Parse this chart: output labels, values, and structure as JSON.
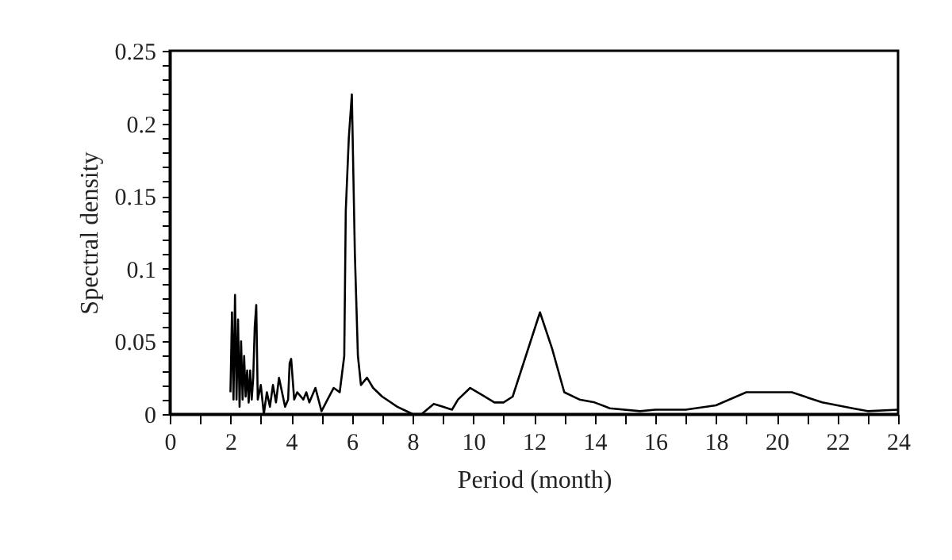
{
  "chart_data": {
    "type": "line",
    "xlabel": "Period (month)",
    "ylabel": "Spectral density",
    "x": [
      2.0,
      2.05,
      2.1,
      2.15,
      2.2,
      2.25,
      2.3,
      2.35,
      2.4,
      2.45,
      2.5,
      2.55,
      2.6,
      2.65,
      2.7,
      2.75,
      2.8,
      2.85,
      2.9,
      3.0,
      3.1,
      3.2,
      3.3,
      3.4,
      3.5,
      3.6,
      3.7,
      3.8,
      3.9,
      3.95,
      4.0,
      4.1,
      4.2,
      4.4,
      4.5,
      4.6,
      4.8,
      5.0,
      5.2,
      5.4,
      5.6,
      5.75,
      5.8,
      5.9,
      6.0,
      6.1,
      6.2,
      6.3,
      6.5,
      6.7,
      7.0,
      7.5,
      8.0,
      8.3,
      8.7,
      9.0,
      9.3,
      9.5,
      9.9,
      10.3,
      10.7,
      11.0,
      11.3,
      12.2,
      12.6,
      13.0,
      13.5,
      14.0,
      14.5,
      15.5,
      16.0,
      17.0,
      18.0,
      19.0,
      20.5,
      21.5,
      22.5,
      23.0,
      24.0
    ],
    "series": [
      {
        "color": "#000000",
        "values": [
          0.015,
          0.07,
          0.01,
          0.082,
          0.01,
          0.065,
          0.005,
          0.05,
          0.01,
          0.04,
          0.012,
          0.03,
          0.008,
          0.03,
          0.01,
          0.025,
          0.06,
          0.075,
          0.01,
          0.02,
          0.0,
          0.015,
          0.005,
          0.02,
          0.008,
          0.025,
          0.015,
          0.005,
          0.01,
          0.035,
          0.038,
          0.01,
          0.015,
          0.01,
          0.015,
          0.008,
          0.018,
          0.002,
          0.01,
          0.018,
          0.015,
          0.04,
          0.14,
          0.19,
          0.22,
          0.11,
          0.04,
          0.02,
          0.025,
          0.018,
          0.012,
          0.005,
          0.0,
          0.0,
          0.007,
          0.005,
          0.003,
          0.01,
          0.018,
          0.013,
          0.008,
          0.008,
          0.012,
          0.07,
          0.045,
          0.015,
          0.01,
          0.008,
          0.004,
          0.002,
          0.003,
          0.003,
          0.006,
          0.015,
          0.015,
          0.008,
          0.004,
          0.002,
          0.003
        ]
      }
    ],
    "xlim": [
      0,
      24
    ],
    "ylim": [
      0,
      0.25
    ],
    "xticks": [
      0,
      {
        "value": 1,
        "label": null
      },
      2,
      {
        "value": 3,
        "label": null
      },
      4,
      {
        "value": 5,
        "label": null
      },
      6,
      {
        "value": 7,
        "label": null
      },
      8,
      {
        "value": 9,
        "label": null
      },
      10,
      {
        "value": 11,
        "label": null
      },
      12,
      {
        "value": 13,
        "label": null
      },
      14,
      {
        "value": 15,
        "label": null
      },
      16,
      {
        "value": 17,
        "label": null
      },
      18,
      {
        "value": 19,
        "label": null
      },
      20,
      {
        "value": 21,
        "label": null
      },
      22,
      {
        "value": 23,
        "label": null
      },
      24
    ],
    "yticks": [
      0,
      {
        "value": 0.01,
        "label": null
      },
      {
        "value": 0.02,
        "label": null
      },
      {
        "value": 0.03,
        "label": null
      },
      {
        "value": 0.04,
        "label": null
      },
      0.05,
      {
        "value": 0.06,
        "label": null
      },
      {
        "value": 0.07,
        "label": null
      },
      {
        "value": 0.08,
        "label": null
      },
      {
        "value": 0.09,
        "label": null
      },
      0.1,
      {
        "value": 0.11,
        "label": null
      },
      {
        "value": 0.12,
        "label": null
      },
      {
        "value": 0.13,
        "label": null
      },
      {
        "value": 0.14,
        "label": null
      },
      0.15,
      {
        "value": 0.16,
        "label": null
      },
      {
        "value": 0.17,
        "label": null
      },
      {
        "value": 0.18,
        "label": null
      },
      {
        "value": 0.19,
        "label": null
      },
      0.2,
      {
        "value": 0.21,
        "label": null
      },
      {
        "value": 0.22,
        "label": null
      },
      {
        "value": 0.23,
        "label": null
      },
      {
        "value": 0.24,
        "label": null
      },
      0.25
    ],
    "grid": false,
    "marker": "none",
    "line_style": "solid"
  }
}
